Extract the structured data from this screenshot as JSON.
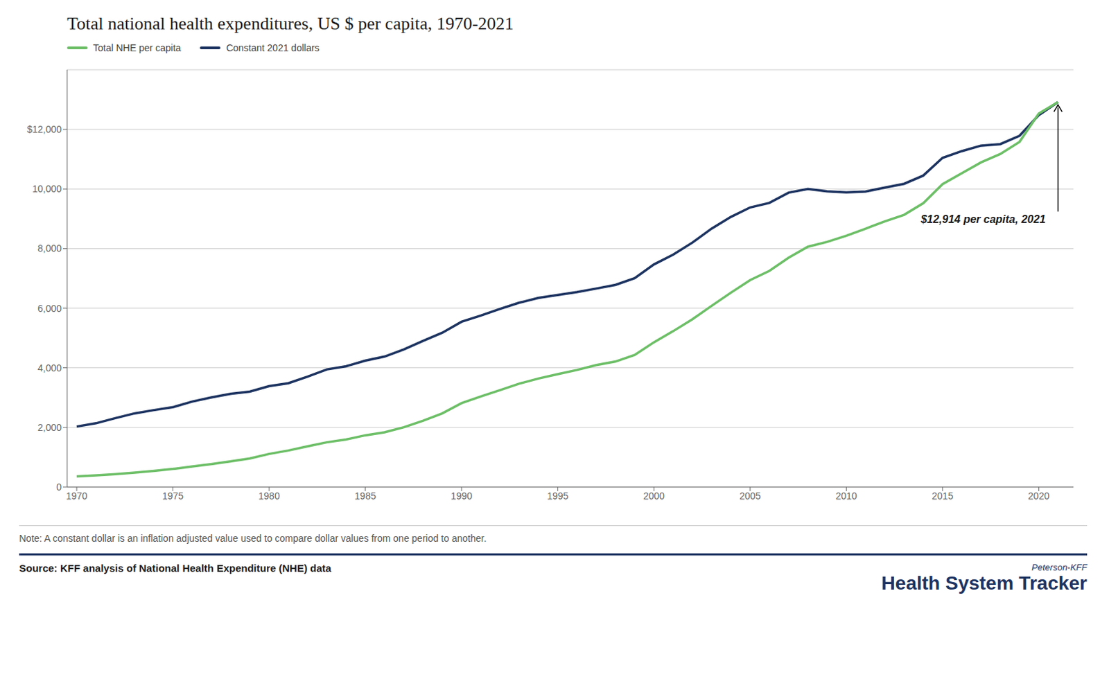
{
  "chart_data": {
    "type": "line",
    "title": "Total national health expenditures, US $ per capita, 1970-2021",
    "x": [
      1970,
      1971,
      1972,
      1973,
      1974,
      1975,
      1976,
      1977,
      1978,
      1979,
      1980,
      1981,
      1982,
      1983,
      1984,
      1985,
      1986,
      1987,
      1988,
      1989,
      1990,
      1991,
      1992,
      1993,
      1994,
      1995,
      1996,
      1997,
      1998,
      1999,
      2000,
      2001,
      2002,
      2003,
      2004,
      2005,
      2006,
      2007,
      2008,
      2009,
      2010,
      2011,
      2012,
      2013,
      2014,
      2015,
      2016,
      2017,
      2018,
      2019,
      2020,
      2021
    ],
    "series": [
      {
        "name": "Total NHE per capita",
        "color": "#6dbf67",
        "values": [
          356,
          388,
          432,
          482,
          540,
          606,
          690,
          769,
          859,
          957,
          1110,
          1225,
          1365,
          1500,
          1596,
          1735,
          1837,
          2005,
          2224,
          2472,
          2814,
          3040,
          3250,
          3468,
          3640,
          3788,
          3928,
          4090,
          4210,
          4430,
          4857,
          5230,
          5630,
          6080,
          6520,
          6944,
          7253,
          7692,
          8063,
          8226,
          8432,
          8668,
          8915,
          9132,
          9523,
          10164,
          10530,
          10893,
          11172,
          11582,
          12531,
          12914
        ]
      },
      {
        "name": "Constant 2021 dollars",
        "color": "#1d3461",
        "values": [
          2028,
          2138,
          2309,
          2469,
          2579,
          2678,
          2866,
          3007,
          3125,
          3202,
          3384,
          3483,
          3705,
          3945,
          4052,
          4239,
          4376,
          4616,
          4901,
          5176,
          5544,
          5750,
          5974,
          6184,
          6345,
          6442,
          6543,
          6659,
          6782,
          7007,
          7468,
          7799,
          8201,
          8672,
          9063,
          9380,
          9534,
          9878,
          10001,
          9919,
          9884,
          9914,
          10048,
          10174,
          10451,
          11044,
          11270,
          11454,
          11506,
          11784,
          12476,
          12914
        ]
      }
    ],
    "xlim": [
      1969.5,
      2021.8
    ],
    "xticks": [
      1970,
      1975,
      1980,
      1985,
      1990,
      1995,
      2000,
      2005,
      2010,
      2015,
      2020
    ],
    "ylim": [
      0,
      14000
    ],
    "yticks": [
      0,
      {
        "value": 2000,
        "label": "2,000"
      },
      {
        "value": 4000,
        "label": "4,000"
      },
      {
        "value": 6000,
        "label": "6,000"
      },
      {
        "value": 8000,
        "label": "8,000"
      },
      {
        "value": 10000,
        "label": "10,000"
      },
      {
        "value": 12000,
        "label": "$12,000"
      }
    ],
    "grid": true,
    "legend": "upper left",
    "annotations": [
      {
        "text": "$12,914 per capita, 2021",
        "x": 2021,
        "y": 12914
      }
    ],
    "note": "Note: A constant dollar is an inflation adjusted value used to compare dollar values from one period to another.",
    "source": "Source: KFF analysis of National Health Expenditure (NHE) data",
    "credits": [
      "Peterson-KFF",
      "Health System Tracker"
    ]
  }
}
